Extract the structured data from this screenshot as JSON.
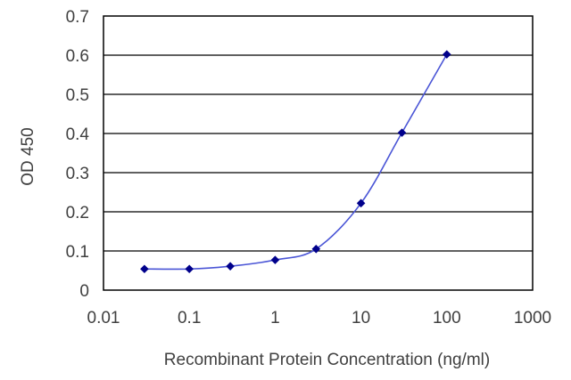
{
  "chart_data": {
    "type": "line",
    "xlabel": "Recombinant Protein Concentration (ng/ml)",
    "ylabel": "OD 450",
    "x_scale": "log",
    "xlim": [
      0.01,
      1000
    ],
    "ylim": [
      0,
      0.7
    ],
    "x_ticks": [
      "0.01",
      "0.1",
      "1",
      "10",
      "100",
      "1000"
    ],
    "y_ticks": [
      "0",
      "0.1",
      "0.2",
      "0.3",
      "0.4",
      "0.5",
      "0.6",
      "0.7"
    ],
    "grid": "horizontal",
    "legend": "none",
    "series": [
      {
        "x": [
          0.03,
          0.1,
          0.3,
          1,
          3,
          10,
          30,
          100
        ],
        "y": [
          0.054,
          0.054,
          0.061,
          0.077,
          0.105,
          0.222,
          0.402,
          0.602
        ]
      }
    ],
    "colors": {
      "line": "#4a55d6",
      "marker": "#00008b",
      "grid": "#000000",
      "text": "#404040"
    }
  }
}
